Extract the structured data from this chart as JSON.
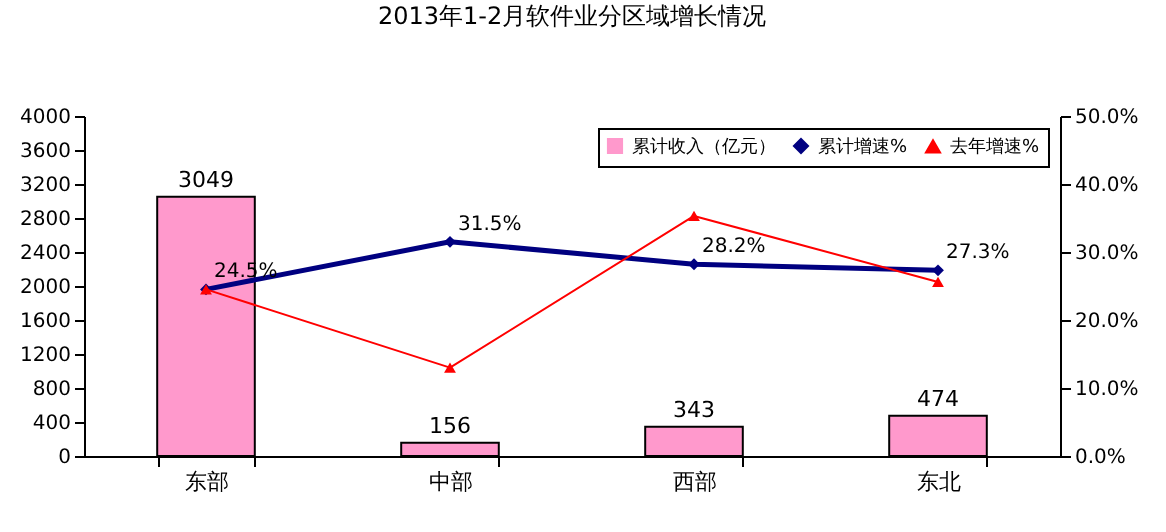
{
  "chart_data": {
    "type": "bar",
    "title": "2013年1-2月软件业分区域增长情况",
    "categories": [
      "东部",
      "中部",
      "西部",
      "东北"
    ],
    "series": [
      {
        "name": "累计收入（亿元）",
        "color": "#ff99cc",
        "values": [
          3049,
          156,
          343,
          474
        ],
        "value_labels": [
          "3049",
          "156",
          "343",
          "474"
        ]
      },
      {
        "name": "累计增速%",
        "type": "line",
        "axis": "y2",
        "color": "#000080",
        "marker": "diamond",
        "values": [
          24.5,
          31.5,
          28.2,
          27.3
        ],
        "value_labels": [
          "24.5%",
          "31.5%",
          "28.2%",
          "27.3%"
        ]
      },
      {
        "name": "去年增速%",
        "type": "line",
        "axis": "y2",
        "color": "#ff0000",
        "marker": "triangle",
        "values": [
          24.5,
          13,
          35.3,
          25.6
        ]
      }
    ],
    "ylim": [
      0,
      4000
    ],
    "yticks": [
      0,
      400,
      800,
      1200,
      1600,
      2000,
      2400,
      2800,
      3200,
      3600,
      4000
    ],
    "y2lim": [
      0,
      50
    ],
    "y2ticks": [
      {
        "value": 0,
        "label": "0.0%"
      },
      {
        "value": 10,
        "label": "10.0%"
      },
      {
        "value": 20,
        "label": "20.0%"
      },
      {
        "value": 30,
        "label": "30.0%"
      },
      {
        "value": 40,
        "label": "40.0%"
      },
      {
        "value": 50,
        "label": "50.0%"
      }
    ],
    "grid": false,
    "legend": "top right"
  }
}
